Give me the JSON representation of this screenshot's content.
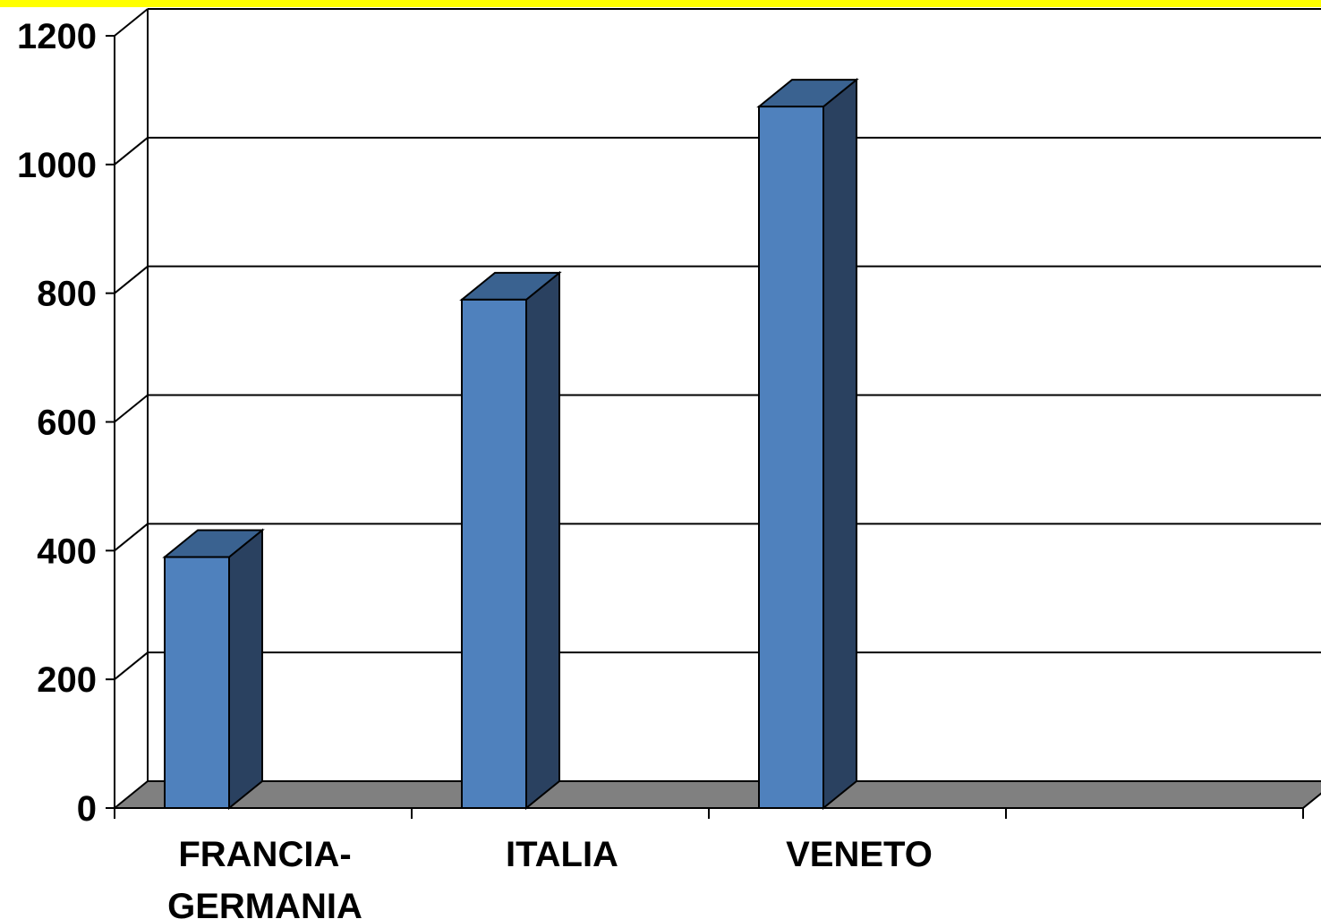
{
  "chart_data": {
    "type": "bar",
    "categories": [
      [
        "FRANCIA-",
        "GERMANIA"
      ],
      [
        "ITALIA"
      ],
      [
        "VENETO"
      ],
      [
        ""
      ]
    ],
    "values": [
      390,
      790,
      1090,
      null
    ],
    "yticks": [
      "0",
      "200",
      "400",
      "600",
      "800",
      "1000",
      "1200"
    ],
    "ylim": [
      0,
      1200
    ],
    "grid": true,
    "legend": "none",
    "three_d": true
  },
  "colors": {
    "top_band": "#ffff00",
    "bar_front": "#4f81bd",
    "bar_top": "#3a6290",
    "bar_side": "#2a4160",
    "floor": "#808080",
    "grid": "#000000",
    "outline": "#000000"
  }
}
